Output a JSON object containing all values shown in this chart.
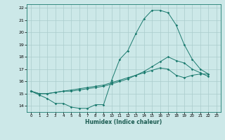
{
  "xlabel": "Humidex (Indice chaleur)",
  "background_color": "#cce8e8",
  "grid_color": "#aacccc",
  "line_color": "#1a7a6e",
  "xlim": [
    -0.5,
    23.5
  ],
  "ylim": [
    13.5,
    22.3
  ],
  "xticks": [
    0,
    1,
    2,
    3,
    4,
    5,
    6,
    7,
    8,
    9,
    10,
    11,
    12,
    13,
    14,
    15,
    16,
    17,
    18,
    19,
    20,
    21,
    22,
    23
  ],
  "yticks": [
    14,
    15,
    16,
    17,
    18,
    19,
    20,
    21,
    22
  ],
  "series1_x": [
    0,
    1,
    2,
    3,
    4,
    5,
    6,
    7,
    8,
    9,
    10,
    11,
    12,
    13,
    14,
    15,
    16,
    17,
    18,
    19,
    20,
    21,
    22
  ],
  "series1_y": [
    15.2,
    14.9,
    14.6,
    14.2,
    14.2,
    13.9,
    13.8,
    13.8,
    14.1,
    14.1,
    16.1,
    17.8,
    18.5,
    19.9,
    21.1,
    21.8,
    21.8,
    21.6,
    20.6,
    19.0,
    17.8,
    17.0,
    16.6
  ],
  "series2_x": [
    0,
    1,
    2,
    3,
    4,
    5,
    6,
    7,
    8,
    9,
    10,
    11,
    12,
    13,
    14,
    15,
    16,
    17,
    18,
    19,
    20,
    21,
    22
  ],
  "series2_y": [
    15.2,
    15.0,
    15.0,
    15.1,
    15.2,
    15.2,
    15.3,
    15.4,
    15.5,
    15.6,
    15.8,
    16.0,
    16.2,
    16.5,
    16.8,
    17.2,
    17.6,
    18.0,
    17.7,
    17.5,
    17.0,
    16.7,
    16.4
  ],
  "series3_x": [
    0,
    1,
    2,
    3,
    4,
    5,
    6,
    7,
    8,
    9,
    10,
    11,
    12,
    13,
    14,
    15,
    16,
    17,
    18,
    19,
    20,
    21,
    22
  ],
  "series3_y": [
    15.2,
    15.0,
    15.0,
    15.1,
    15.2,
    15.3,
    15.4,
    15.5,
    15.6,
    15.7,
    15.9,
    16.1,
    16.3,
    16.5,
    16.7,
    16.9,
    17.1,
    17.0,
    16.5,
    16.3,
    16.5,
    16.6,
    16.6
  ]
}
